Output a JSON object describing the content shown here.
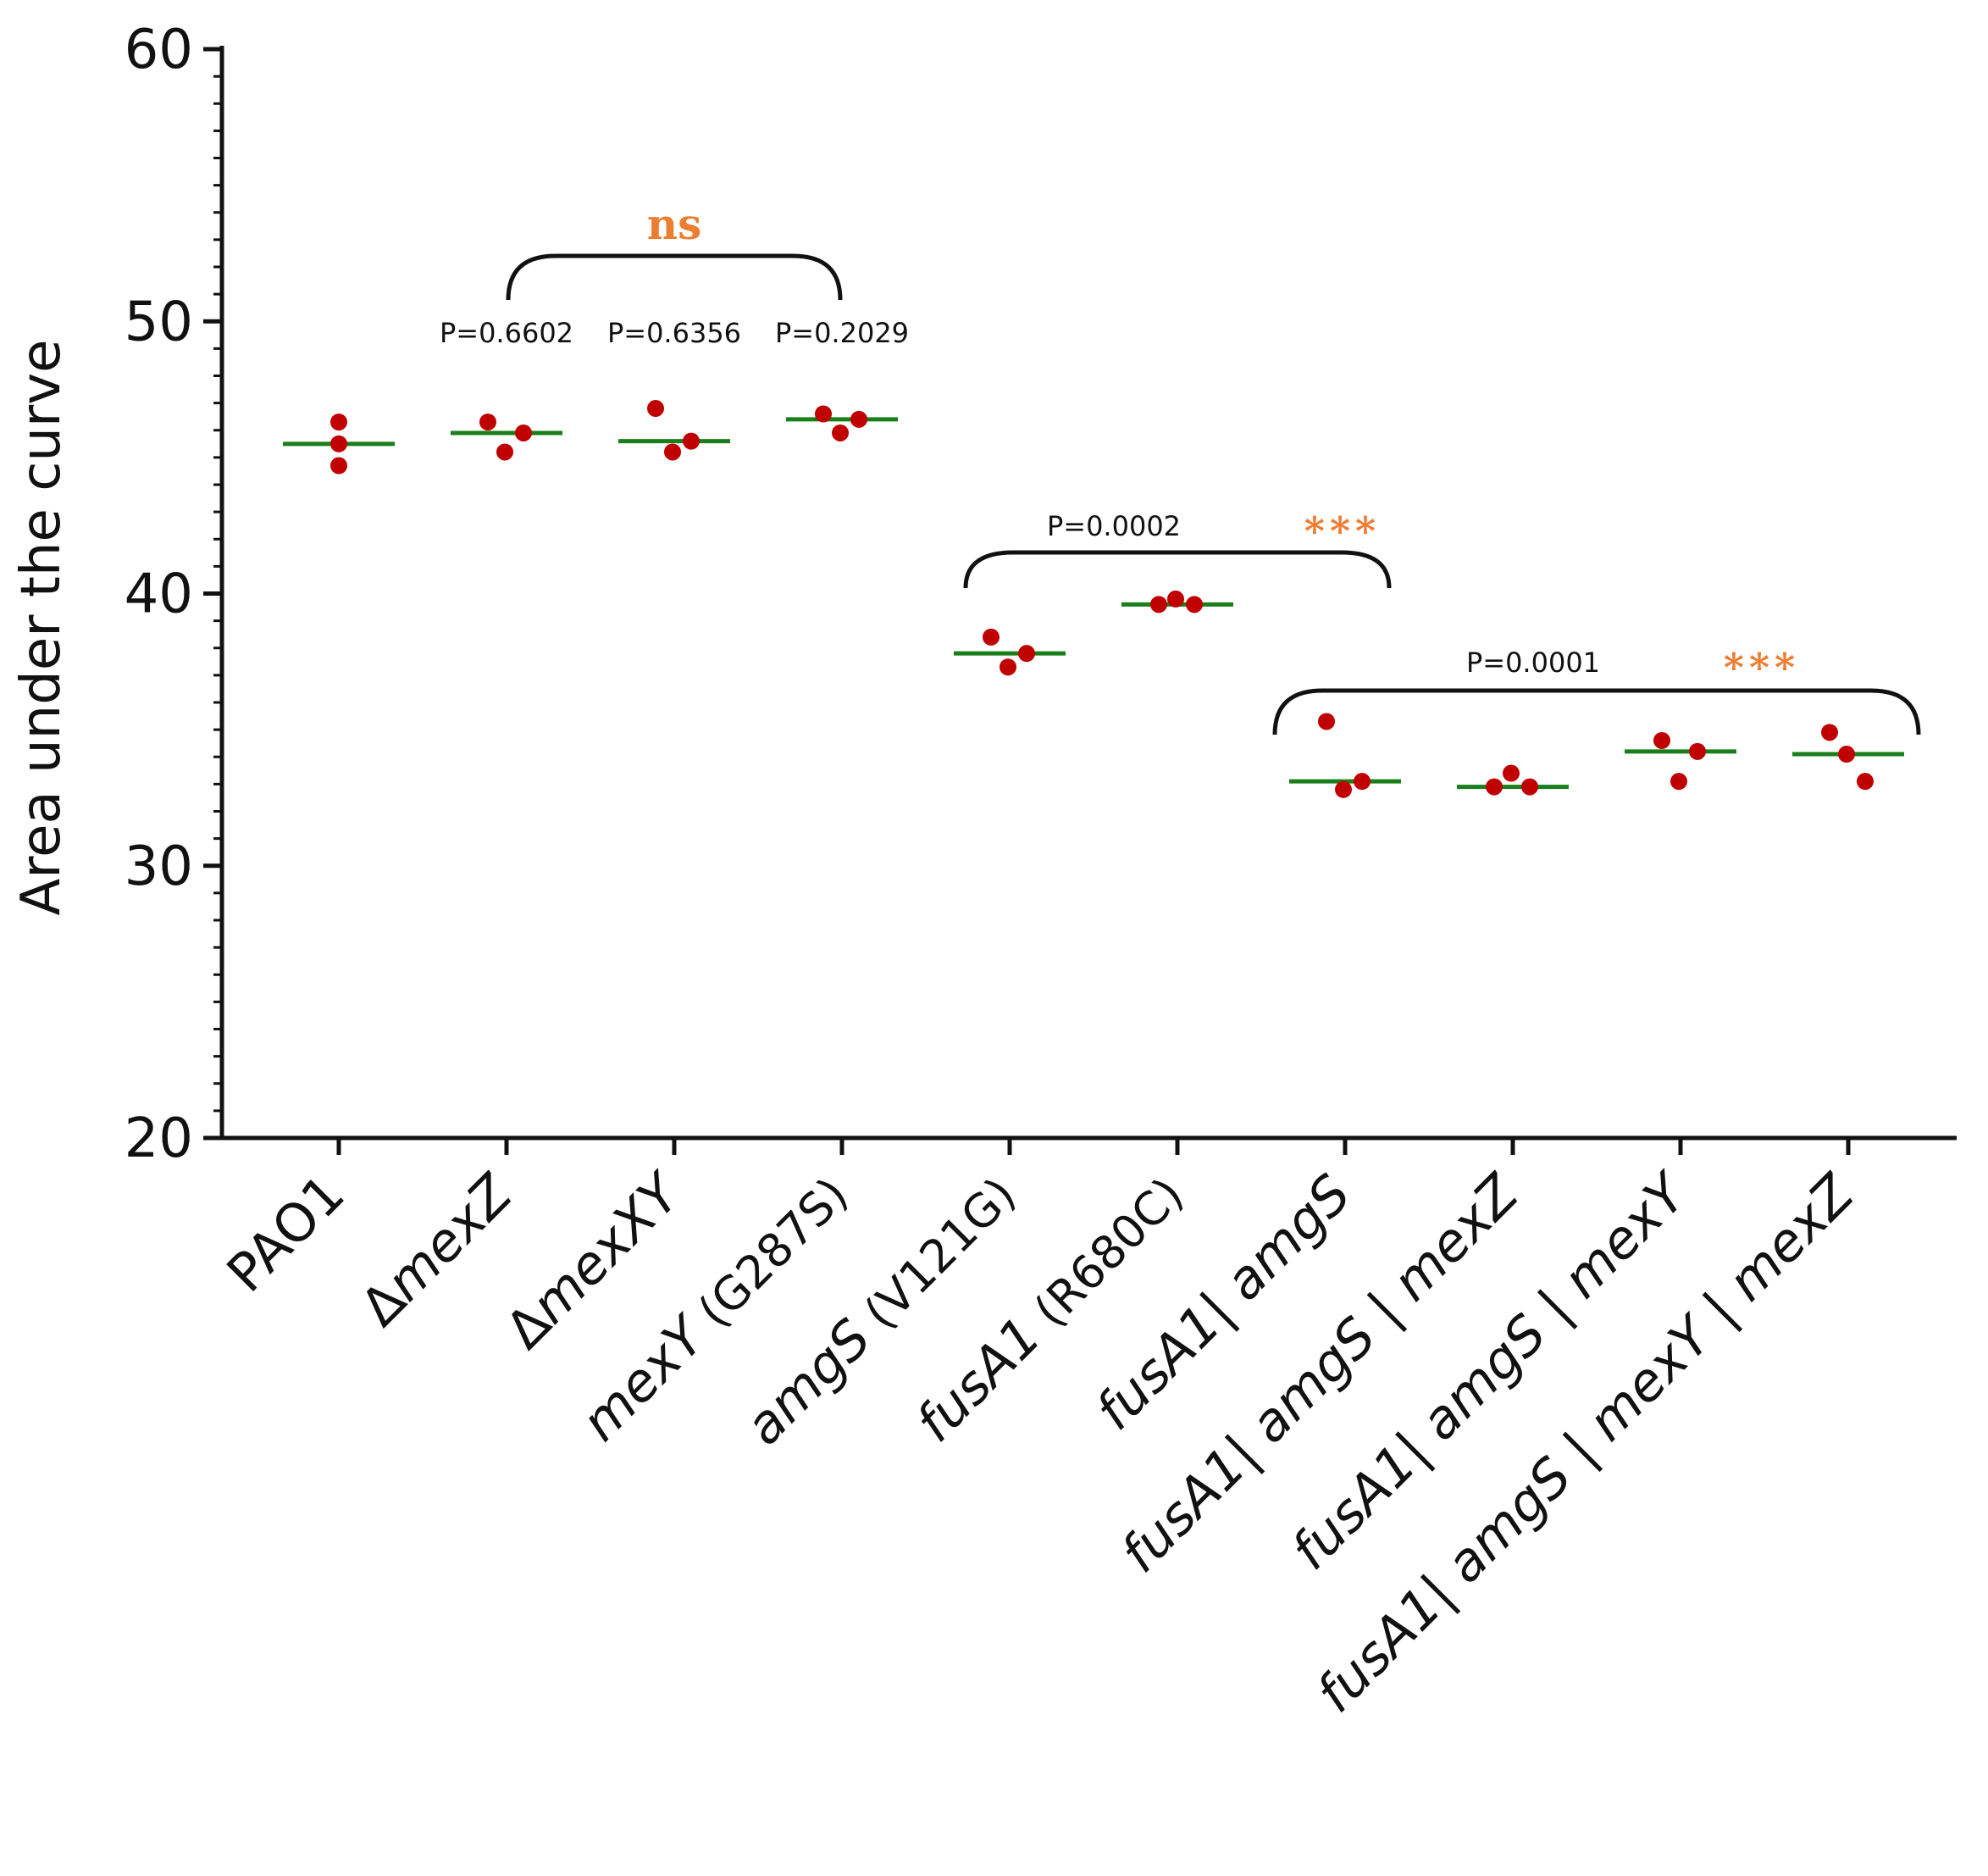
{
  "chart_data": {
    "type": "scatter",
    "title": "",
    "xlabel": "",
    "ylabel": "Area under the curve",
    "ylim": [
      20,
      60
    ],
    "yticks": [
      20,
      30,
      40,
      50,
      60
    ],
    "grid": false,
    "colors": {
      "point": "#c00000",
      "median": "#1a7f1a",
      "axis": "#111111",
      "significance": "#ed7d31"
    },
    "categories": [
      {
        "segments": [
          {
            "text": "PAO1",
            "style": "plain"
          }
        ]
      },
      {
        "segments": [
          {
            "text": "Δ",
            "style": "plain"
          },
          {
            "text": "mexZ",
            "style": "italic"
          }
        ]
      },
      {
        "segments": [
          {
            "text": "Δ",
            "style": "plain"
          },
          {
            "text": "mexXY",
            "style": "italic"
          }
        ]
      },
      {
        "segments": [
          {
            "text": "mexY",
            "style": "italic"
          },
          {
            "text": " (G287S)",
            "style": "small"
          }
        ]
      },
      {
        "segments": [
          {
            "text": "amgS",
            "style": "italic"
          },
          {
            "text": " (V121G)",
            "style": "small"
          }
        ]
      },
      {
        "segments": [
          {
            "text": "fusA1",
            "style": "italic"
          },
          {
            "text": " (R680C)",
            "style": "small"
          }
        ]
      },
      {
        "segments": [
          {
            "text": "fusA1| amgS",
            "style": "italic"
          }
        ]
      },
      {
        "segments": [
          {
            "text": "fusA1| amgS | mexZ",
            "style": "italic"
          }
        ]
      },
      {
        "segments": [
          {
            "text": "fusA1| amgS | mexY",
            "style": "italic"
          }
        ]
      },
      {
        "segments": [
          {
            "text": "fusA1| amgS | mexY | mexZ",
            "style": "italic"
          }
        ]
      }
    ],
    "series": [
      {
        "name": "replicates",
        "values": [
          [
            46.3,
            45.5,
            44.7
          ],
          [
            46.3,
            45.2,
            45.9
          ],
          [
            46.8,
            45.2,
            45.6
          ],
          [
            46.6,
            45.9,
            46.4
          ],
          [
            38.4,
            37.3,
            37.8
          ],
          [
            39.6,
            39.8,
            39.6
          ],
          [
            35.3,
            32.8,
            33.1
          ],
          [
            32.9,
            33.4,
            32.9
          ],
          [
            34.6,
            33.1,
            34.2
          ],
          [
            34.9,
            34.1,
            33.1
          ]
        ]
      },
      {
        "name": "median",
        "values": [
          45.5,
          45.9,
          45.6,
          46.4,
          37.8,
          39.6,
          33.1,
          32.9,
          34.2,
          34.1
        ]
      }
    ],
    "annotations": {
      "pvalues": [
        {
          "text": "P=0.6602",
          "category_index": 1
        },
        {
          "text": "P=0.6356",
          "category_index": 2
        },
        {
          "text": "P=0.2029",
          "category_index": 3
        }
      ],
      "brackets": [
        {
          "from_index": 1,
          "to_index": 3,
          "label": "ns",
          "pvalue": ""
        },
        {
          "from_index": 4,
          "to_index": 6,
          "label": "***",
          "pvalue": "P=0.0002"
        },
        {
          "from_index": 6,
          "to_index": 9,
          "label": "***",
          "pvalue": "P=0.0001"
        }
      ]
    }
  }
}
